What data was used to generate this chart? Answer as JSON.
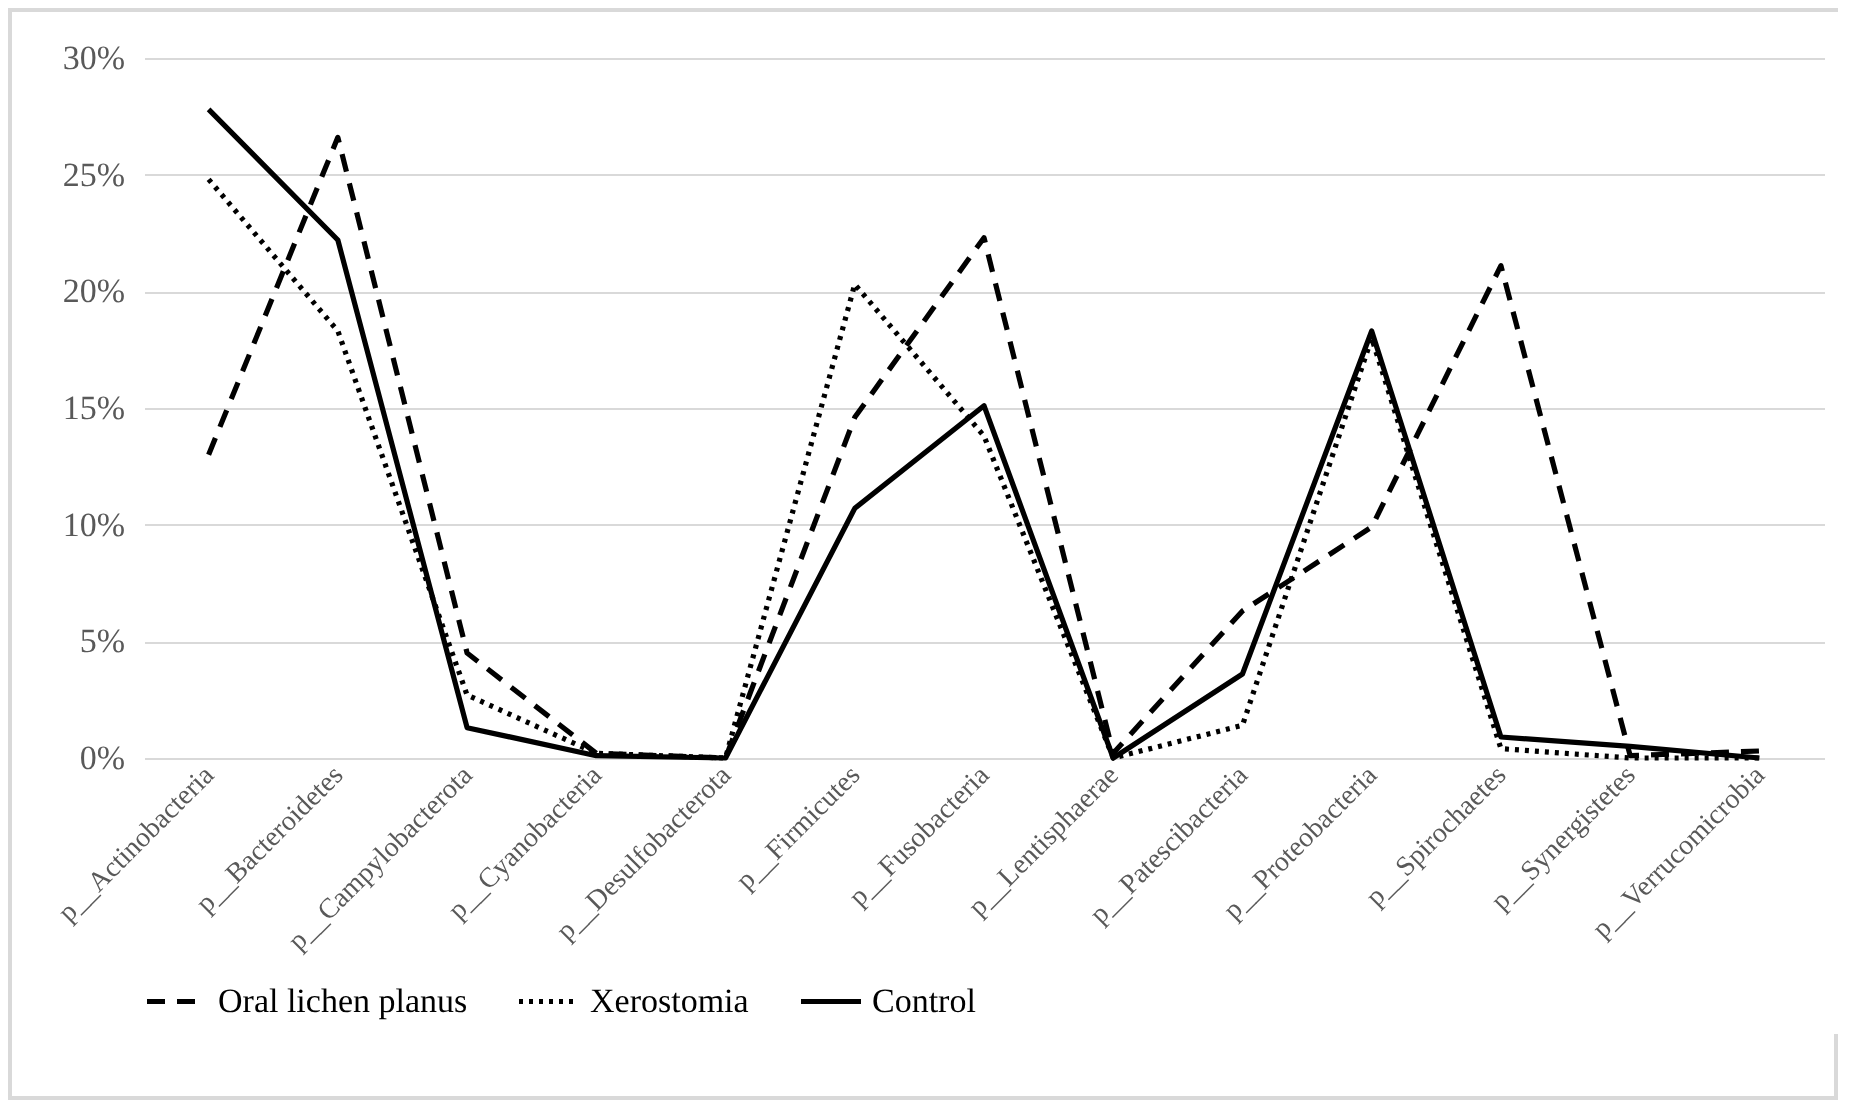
{
  "chart_data": {
    "type": "line",
    "categories": [
      "p__Actinobacteria",
      "p__Bacteroidetes",
      "p__Campylobacterota",
      "p__Cyanobacteria",
      "p__Desulfobacterota",
      "p__Firmicutes",
      "p__Fusobacteria",
      "p__Lentisphaerae",
      "p__Patescibacteria",
      "p__Proteobacteria",
      "p__Spirochaetes",
      "p__Synergistetes",
      "p__Verrucomicrobia"
    ],
    "series": [
      {
        "name": "Oral lichen planus",
        "color": "#000000",
        "line_style": "dashed",
        "values": [
          13.0,
          26.6,
          4.5,
          0.2,
          0,
          14.6,
          22.3,
          0.2,
          6.3,
          9.9,
          21.1,
          0.1,
          0.3
        ]
      },
      {
        "name": "Xerostomia",
        "color": "#000000",
        "line_style": "dotted",
        "values": [
          24.8,
          18.3,
          2.7,
          0.2,
          0,
          20.3,
          13.8,
          0,
          1.4,
          18.0,
          0.4,
          0,
          0
        ]
      },
      {
        "name": "Control",
        "color": "#000000",
        "line_style": "solid",
        "values": [
          27.8,
          22.2,
          1.3,
          0.1,
          0,
          10.7,
          15.1,
          0,
          3.6,
          18.3,
          0.9,
          0.5,
          0
        ]
      }
    ],
    "ylim": [
      0,
      30
    ],
    "yticks": [
      {
        "value": 0,
        "label": "0%"
      },
      {
        "value": 5,
        "label": "5%"
      },
      {
        "value": 10,
        "label": "10%"
      },
      {
        "value": 15,
        "label": "15%"
      },
      {
        "value": 20,
        "label": "20%"
      },
      {
        "value": 25,
        "label": "25%"
      },
      {
        "value": 30,
        "label": "30%"
      }
    ],
    "grid": "y",
    "legend": "bottom",
    "marker": "none"
  }
}
